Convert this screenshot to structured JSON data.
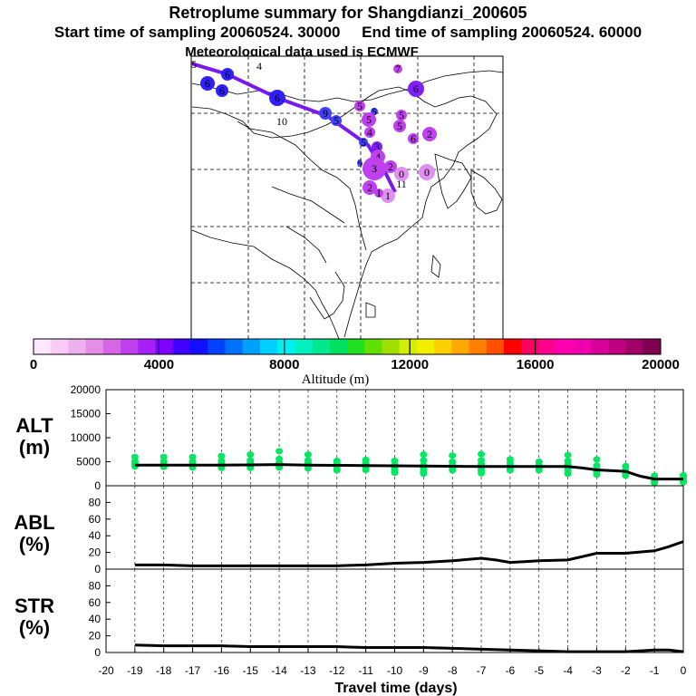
{
  "titles": {
    "main": "Retroplume summary for Shangdianzi_200605",
    "sampling": "Start time of sampling 20060524. 30000     End time of sampling 20060524. 60000",
    "met": "Meteorological data used is ECMWF"
  },
  "colorbar": {
    "label": "Altitude (m)",
    "ticks": [
      "0",
      "4000",
      "8000",
      "12000",
      "16000",
      "20000"
    ],
    "colors": [
      "#ffe6ff",
      "#f7cdf7",
      "#eeb0ee",
      "#e68ee6",
      "#d666e6",
      "#c040f0",
      "#a820f8",
      "#8000ff",
      "#4000ff",
      "#1010ff",
      "#0040ff",
      "#0070ff",
      "#00a0ff",
      "#00d0ff",
      "#00f0f0",
      "#00f0c0",
      "#00e890",
      "#00e060",
      "#20e020",
      "#60e000",
      "#a0e000",
      "#d0f000",
      "#f0f000",
      "#ffd000",
      "#ffa800",
      "#ff8000",
      "#ff5000",
      "#ff0000",
      "#ff0060",
      "#ff0090",
      "#ff00b0",
      "#f000b0",
      "#d80098",
      "#c00080",
      "#a00068",
      "#800050"
    ]
  },
  "chart_data": [
    {
      "type": "scatter",
      "name": "altitude",
      "ylabel": "ALT\n(m)",
      "xlabel": "Travel time (days)",
      "xlim": [
        -20,
        0
      ],
      "ylim": [
        0,
        20000
      ],
      "yticks": [
        "0",
        "5000",
        "10000",
        "15000",
        "20000"
      ],
      "xticks": [
        "-20",
        "-19",
        "-18",
        "-17",
        "-16",
        "-15",
        "-14",
        "-13",
        "-12",
        "-11",
        "-10",
        "-9",
        "-8",
        "-7",
        "-6",
        "-5",
        "-4",
        "-3",
        "-2",
        "-1",
        "0"
      ],
      "dot_color": "#00e860",
      "line_color": "#000000",
      "mean_line": [
        [
          -19.0,
          4300
        ],
        [
          -18.0,
          4300
        ],
        [
          -17.0,
          4300
        ],
        [
          -16.0,
          4300
        ],
        [
          -15.0,
          4350
        ],
        [
          -14.0,
          4400
        ],
        [
          -13.0,
          4300
        ],
        [
          -12.0,
          4250
        ],
        [
          -11.0,
          4200
        ],
        [
          -10.0,
          4150
        ],
        [
          -9.0,
          4100
        ],
        [
          -8.0,
          4050
        ],
        [
          -7.0,
          4000
        ],
        [
          -6.0,
          4000
        ],
        [
          -5.0,
          4000
        ],
        [
          -4.0,
          4000
        ],
        [
          -3.5,
          3700
        ],
        [
          -3.0,
          3300
        ],
        [
          -2.0,
          3000
        ],
        [
          -1.5,
          2000
        ],
        [
          -1.0,
          1400
        ],
        [
          0.0,
          1400
        ]
      ],
      "clusters": [
        [
          -19.0,
          [
            4000,
            4200,
            4600,
            5100,
            6000
          ]
        ],
        [
          -18.0,
          [
            3900,
            4200,
            4500,
            5100,
            6000
          ]
        ],
        [
          -17.0,
          [
            3800,
            4200,
            4600,
            5100,
            6000
          ]
        ],
        [
          -16.0,
          [
            3700,
            4100,
            4600,
            5200,
            6200
          ]
        ],
        [
          -15.0,
          [
            3700,
            4200,
            4700,
            5300,
            6500
          ]
        ],
        [
          -14.0,
          [
            3800,
            4300,
            4800,
            5600,
            7200
          ]
        ],
        [
          -13.0,
          [
            3600,
            4200,
            4700,
            5300,
            6500
          ]
        ],
        [
          -12.0,
          [
            3200,
            3600,
            4100,
            4600,
            5200
          ]
        ],
        [
          -11.0,
          [
            3300,
            3700,
            4200,
            4700,
            5400
          ]
        ],
        [
          -10.0,
          [
            2700,
            3200,
            3700,
            4300,
            5200
          ]
        ],
        [
          -9.0,
          [
            2500,
            3000,
            3600,
            4300,
            5300,
            6500
          ]
        ],
        [
          -8.0,
          [
            3200,
            3700,
            4300,
            5000,
            6300
          ]
        ],
        [
          -7.0,
          [
            2600,
            3200,
            3800,
            4500,
            5300,
            6600
          ]
        ],
        [
          -6.0,
          [
            3200,
            3700,
            4200,
            4800,
            5500
          ]
        ],
        [
          -5.0,
          [
            3200,
            3700,
            4300,
            5000
          ]
        ],
        [
          -4.0,
          [
            2500,
            3100,
            3700,
            4400,
            5200,
            6400
          ]
        ],
        [
          -3.0,
          [
            2300,
            2900,
            3500,
            4200,
            5500
          ]
        ],
        [
          -2.0,
          [
            2100,
            2700,
            3300,
            4100
          ]
        ],
        [
          -1.0,
          [
            600,
            1000,
            1500,
            2100
          ]
        ],
        [
          0.0,
          [
            700,
            1100,
            1600,
            2200
          ]
        ]
      ]
    },
    {
      "type": "line",
      "name": "abl",
      "ylabel": "ABL\n(%)",
      "xlim": [
        -20,
        0
      ],
      "ylim": [
        0,
        100
      ],
      "yticks": [
        "0",
        "20",
        "40",
        "60",
        "80"
      ],
      "series": [
        {
          "name": "ABL fraction",
          "points": [
            [
              -19.0,
              5
            ],
            [
              -18.0,
              5
            ],
            [
              -17.0,
              4
            ],
            [
              -16.0,
              4
            ],
            [
              -15.0,
              4
            ],
            [
              -14.0,
              4
            ],
            [
              -13.0,
              4
            ],
            [
              -12.0,
              4
            ],
            [
              -11.0,
              5
            ],
            [
              -10.0,
              7
            ],
            [
              -9.0,
              8
            ],
            [
              -8.0,
              10
            ],
            [
              -7.0,
              13
            ],
            [
              -6.5,
              11
            ],
            [
              -6.0,
              8
            ],
            [
              -5.5,
              9
            ],
            [
              -5.0,
              10
            ],
            [
              -4.0,
              11
            ],
            [
              -3.0,
              19
            ],
            [
              -2.0,
              19
            ],
            [
              -1.0,
              22
            ],
            [
              -0.5,
              27
            ],
            [
              0.0,
              33
            ]
          ]
        }
      ]
    },
    {
      "type": "line",
      "name": "str",
      "ylabel": "STR\n(%)",
      "xlim": [
        -20,
        0
      ],
      "ylim": [
        0,
        100
      ],
      "yticks": [
        "0",
        "20",
        "40",
        "60",
        "80"
      ],
      "series": [
        {
          "name": "STR fraction",
          "points": [
            [
              -19.0,
              9
            ],
            [
              -18.0,
              8
            ],
            [
              -17.0,
              8
            ],
            [
              -16.0,
              8
            ],
            [
              -15.0,
              7
            ],
            [
              -14.0,
              7
            ],
            [
              -13.0,
              7
            ],
            [
              -12.0,
              7
            ],
            [
              -11.0,
              6
            ],
            [
              -10.0,
              6
            ],
            [
              -9.0,
              6
            ],
            [
              -8.0,
              5
            ],
            [
              -7.0,
              4
            ],
            [
              -6.0,
              3
            ],
            [
              -5.0,
              2
            ],
            [
              -4.0,
              1
            ],
            [
              -3.0,
              1
            ],
            [
              -2.0,
              1
            ],
            [
              -1.0,
              3
            ],
            [
              -0.5,
              3
            ],
            [
              0.0,
              1
            ]
          ]
        }
      ]
    }
  ],
  "map": {
    "track": {
      "color": "#7a18f0",
      "points": [
        [
          0,
          0
        ],
        [
          40,
          12
        ],
        [
          95,
          38
        ],
        [
          150,
          58
        ],
        [
          195,
          90
        ],
        [
          215,
          122
        ],
        [
          225,
          142
        ]
      ]
    },
    "clusters": [
      {
        "label": "5",
        "color": "#3020ff",
        "r": 0,
        "x": 3,
        "y": 1
      },
      {
        "label": "6",
        "color": "#3020ff",
        "r": 7,
        "x": 40,
        "y": 12
      },
      {
        "label": "4",
        "color": "#00b0f0",
        "r": 0,
        "x": 75,
        "y": 3
      },
      {
        "label": "7",
        "color": "#c040f0",
        "r": 5,
        "x": 228,
        "y": 6
      },
      {
        "label": "6",
        "color": "#3020ff",
        "r": 8,
        "x": 18,
        "y": 22
      },
      {
        "label": "6",
        "color": "#3020ff",
        "r": 7,
        "x": 34,
        "y": 30
      },
      {
        "label": "6",
        "color": "#3020ff",
        "r": 9,
        "x": 95,
        "y": 38
      },
      {
        "label": "6",
        "color": "#8020f8",
        "r": 9,
        "x": 248,
        "y": 28
      },
      {
        "label": "10",
        "color": "#c040f0",
        "r": 0,
        "x": 100,
        "y": 64
      },
      {
        "label": "9",
        "color": "#4040ff",
        "r": 7,
        "x": 148,
        "y": 55
      },
      {
        "label": "5",
        "color": "#c040f0",
        "r": 6,
        "x": 186,
        "y": 47
      },
      {
        "label": "5",
        "color": "#4040ff",
        "r": 4,
        "x": 202,
        "y": 53
      },
      {
        "label": "5",
        "color": "#c040f0",
        "r": 6,
        "x": 232,
        "y": 57
      },
      {
        "label": "5",
        "color": "#4040ff",
        "r": 6,
        "x": 160,
        "y": 63
      },
      {
        "label": "5",
        "color": "#c040f0",
        "r": 8,
        "x": 196,
        "y": 62
      },
      {
        "label": "5",
        "color": "#c040f0",
        "r": 7,
        "x": 230,
        "y": 69
      },
      {
        "label": "2",
        "color": "#c040f0",
        "r": 8,
        "x": 263,
        "y": 78
      },
      {
        "label": "4",
        "color": "#c040f0",
        "r": 6,
        "x": 197,
        "y": 76
      },
      {
        "label": "6",
        "color": "#c040f0",
        "r": 6,
        "x": 245,
        "y": 83
      },
      {
        "label": "5",
        "color": "#4040ff",
        "r": 5,
        "x": 190,
        "y": 87
      },
      {
        "label": "3",
        "color": "#8020f8",
        "r": 6,
        "x": 205,
        "y": 92
      },
      {
        "label": "4",
        "color": "#c040f0",
        "r": 8,
        "x": 206,
        "y": 103
      },
      {
        "label": "3",
        "color": "#c040f0",
        "r": 13,
        "x": 202,
        "y": 116
      },
      {
        "label": "2",
        "color": "#c040f0",
        "r": 7,
        "x": 220,
        "y": 114
      },
      {
        "label": "5",
        "color": "#4040ff",
        "r": 3,
        "x": 186,
        "y": 110
      },
      {
        "label": "0",
        "color": "#e090f0",
        "r": 8,
        "x": 232,
        "y": 122
      },
      {
        "label": "0",
        "color": "#e090f0",
        "r": 9,
        "x": 260,
        "y": 120
      },
      {
        "label": "2",
        "color": "#c040f0",
        "r": 8,
        "x": 197,
        "y": 137
      },
      {
        "label": "1",
        "color": "#e090f0",
        "r": 8,
        "x": 217,
        "y": 146
      },
      {
        "label": "1",
        "color": "#c040f0",
        "r": 5,
        "x": 207,
        "y": 143
      },
      {
        "label": "11",
        "color": "#e090f0",
        "r": 0,
        "x": 232,
        "y": 133
      }
    ]
  }
}
